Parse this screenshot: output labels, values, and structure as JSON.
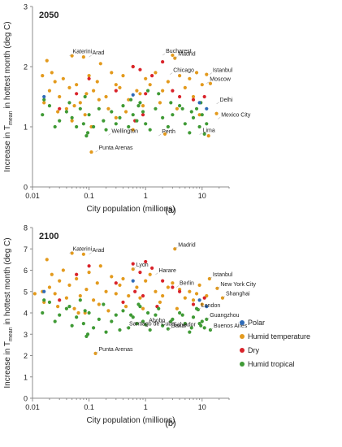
{
  "chart_data": [
    {
      "type": "scatter",
      "title": "2050",
      "caption": "(a)",
      "xlabel": "City population (millions)",
      "ylabel_main": "Increase in T",
      "ylabel_sub": "mean",
      "ylabel_tail": " in hottest month (deg C)",
      "xscale": "log",
      "xlim": [
        0.01,
        30
      ],
      "ylim": [
        0,
        3
      ],
      "xticks": [
        0.01,
        0.1,
        1,
        10
      ],
      "xtick_labels": [
        "0.01",
        "0.1",
        "1",
        "10"
      ],
      "yticks": [
        0,
        1,
        2,
        3
      ],
      "ytick_labels": [
        "0",
        "1",
        "2",
        "3"
      ],
      "grid": false,
      "annotations": [
        {
          "text": "Katerini",
          "x": 0.045,
          "y": 2.18
        },
        {
          "text": "Arad",
          "x": 0.1,
          "y": 2.16
        },
        {
          "text": "Bucharest",
          "x": 2.0,
          "y": 2.19
        },
        {
          "text": "Madrid",
          "x": 3.3,
          "y": 2.14
        },
        {
          "text": "Chicago",
          "x": 2.7,
          "y": 1.87
        },
        {
          "text": "Istanbul",
          "x": 13.5,
          "y": 1.87
        },
        {
          "text": "Moscow",
          "x": 12.0,
          "y": 1.72
        },
        {
          "text": "Delhi",
          "x": 18.0,
          "y": 1.38
        },
        {
          "text": "Mexico City",
          "x": 19.0,
          "y": 1.13
        },
        {
          "text": "Wellington",
          "x": 0.22,
          "y": 0.86
        },
        {
          "text": "Perth",
          "x": 1.7,
          "y": 0.85
        },
        {
          "text": "Lima",
          "x": 9.0,
          "y": 0.87
        },
        {
          "text": "Punta Arenas",
          "x": 0.13,
          "y": 0.58
        }
      ],
      "series": [
        {
          "name": "Humid temperature",
          "x": [
            0.015,
            0.018,
            0.02,
            0.022,
            0.025,
            0.03,
            0.035,
            0.04,
            0.045,
            0.05,
            0.06,
            0.07,
            0.08,
            0.09,
            0.1,
            0.12,
            0.14,
            0.16,
            0.2,
            0.25,
            0.3,
            0.35,
            0.4,
            0.5,
            0.6,
            0.7,
            0.8,
            1.0,
            1.2,
            1.5,
            2.0,
            2.5,
            3.0,
            3.3,
            4.0,
            5.0,
            6.0,
            7.0,
            8.0,
            10.0,
            12.0,
            14.0,
            0.016,
            0.028,
            0.055,
            0.085,
            0.15,
            0.22,
            0.45,
            0.9,
            1.8,
            3.6,
            9.0,
            0.11,
            0.6,
            13.0,
            18.0,
            0.05,
            0.3,
            2.2,
            0.11
          ],
          "y": [
            1.85,
            2.1,
            1.6,
            1.9,
            1.75,
            1.5,
            1.8,
            1.3,
            1.65,
            2.18,
            1.7,
            1.4,
            2.16,
            1.55,
            1.85,
            1.6,
            1.75,
            2.05,
            1.5,
            1.9,
            1.7,
            1.65,
            1.85,
            1.45,
            2.0,
            1.6,
            1.55,
            1.8,
            1.7,
            1.9,
            1.6,
            1.75,
            2.19,
            2.14,
            1.85,
            1.65,
            1.8,
            1.5,
            1.9,
            1.7,
            1.87,
            1.72,
            1.4,
            1.25,
            1.35,
            1.2,
            1.45,
            1.3,
            1.25,
            1.35,
            1.4,
            1.3,
            1.2,
            0.58,
            0.95,
            0.85,
            1.22,
            1.1,
            1.15,
            0.88,
            1.0
          ]
        },
        {
          "name": "Dry",
          "x": [
            0.03,
            0.06,
            0.1,
            0.3,
            0.6,
            0.8,
            1.0,
            1.3,
            2.0,
            3.0,
            4.0,
            7.0,
            11.0,
            0.9,
            0.65
          ],
          "y": [
            1.3,
            1.55,
            1.8,
            1.6,
            2.0,
            1.95,
            1.55,
            1.85,
            2.08,
            1.6,
            1.5,
            1.45,
            1.5,
            1.2,
            1.1
          ]
        },
        {
          "name": "Humid tropical",
          "x": [
            0.015,
            0.02,
            0.025,
            0.03,
            0.04,
            0.05,
            0.06,
            0.07,
            0.08,
            0.09,
            0.1,
            0.12,
            0.15,
            0.18,
            0.2,
            0.25,
            0.3,
            0.35,
            0.4,
            0.5,
            0.6,
            0.7,
            0.8,
            0.9,
            1.0,
            1.2,
            1.5,
            2.0,
            2.5,
            3.0,
            4.0,
            5.0,
            6.0,
            7.0,
            8.0,
            9.0,
            10.0,
            11.0,
            12.0,
            0.016,
            0.045,
            0.085,
            0.55,
            0.75,
            1.1,
            1.7,
            2.8,
            4.5,
            6.5,
            9.5,
            0.095
          ],
          "y": [
            1.2,
            1.35,
            1.0,
            1.1,
            1.25,
            1.15,
            1.0,
            1.3,
            1.05,
            0.85,
            1.2,
            1.0,
            1.3,
            1.1,
            0.95,
            1.25,
            1.05,
            1.15,
            1.35,
            1.0,
            1.2,
            1.1,
            1.4,
            1.25,
            1.05,
            0.95,
            1.3,
            1.15,
            1.0,
            1.2,
            1.35,
            1.05,
            0.9,
            1.15,
            1.3,
            1.0,
            1.2,
            0.88,
            1.05,
            1.45,
            1.4,
            1.5,
            1.45,
            1.35,
            1.6,
            1.55,
            1.4,
            1.3,
            1.25,
            1.4,
            0.9
          ]
        },
        {
          "name": "Polar",
          "x": [
            0.016,
            0.6,
            9.0,
            12.0
          ],
          "y": [
            1.5,
            1.53,
            1.4,
            1.3
          ]
        }
      ]
    },
    {
      "type": "scatter",
      "title": "2100",
      "caption": "(b)",
      "xlabel": "City population (millions)",
      "ylabel_main": "Increase in T",
      "ylabel_sub": "mean",
      "ylabel_tail": " in hottest month (deg C)",
      "xscale": "log",
      "xlim": [
        0.01,
        30
      ],
      "ylim": [
        0,
        8
      ],
      "xticks": [
        0.01,
        0.1,
        1,
        10
      ],
      "xtick_labels": [
        "0.01",
        "0.1",
        "1",
        "10"
      ],
      "yticks": [
        0,
        1,
        2,
        3,
        4,
        5,
        6,
        7,
        8
      ],
      "ytick_labels": [
        "0",
        "1",
        "2",
        "3",
        "4",
        "5",
        "6",
        "7",
        "8"
      ],
      "grid": false,
      "legend": {
        "position": "right",
        "entries": [
          "Polar",
          "Humid temperature",
          "Dry",
          "Humid tropical"
        ]
      },
      "annotations": [
        {
          "text": "Katerini",
          "x": 0.045,
          "y": 6.8
        },
        {
          "text": "Arad",
          "x": 0.1,
          "y": 6.75
        },
        {
          "text": "Madrid",
          "x": 3.3,
          "y": 7.0
        },
        {
          "text": "Lyon",
          "x": 0.6,
          "y": 6.05
        },
        {
          "text": "Harare",
          "x": 1.5,
          "y": 5.8
        },
        {
          "text": "Istanbul",
          "x": 13.5,
          "y": 5.6
        },
        {
          "text": "Berlin",
          "x": 3.5,
          "y": 5.2
        },
        {
          "text": "New York City",
          "x": 18.5,
          "y": 5.15
        },
        {
          "text": "Shanghai",
          "x": 23.0,
          "y": 4.7
        },
        {
          "text": "London",
          "x": 8.5,
          "y": 4.15
        },
        {
          "text": "Guangzhou",
          "x": 12.0,
          "y": 3.7
        },
        {
          "text": "Buenos Aires",
          "x": 14.0,
          "y": 3.2
        },
        {
          "text": "Salvador",
          "x": 2.7,
          "y": 3.25
        },
        {
          "text": "Abobo",
          "x": 1.0,
          "y": 3.45
        },
        {
          "text": "Santiago de Cuba",
          "x": 0.45,
          "y": 3.3
        },
        {
          "text": "Dakar",
          "x": 2.5,
          "y": 3.2
        },
        {
          "text": "Punta Arenas",
          "x": 0.13,
          "y": 2.1
        }
      ],
      "series": [
        {
          "name": "Humid temperature",
          "x": [
            0.015,
            0.018,
            0.02,
            0.022,
            0.025,
            0.03,
            0.035,
            0.04,
            0.045,
            0.05,
            0.06,
            0.07,
            0.08,
            0.09,
            0.1,
            0.12,
            0.14,
            0.16,
            0.2,
            0.25,
            0.3,
            0.35,
            0.4,
            0.5,
            0.6,
            0.7,
            0.8,
            1.0,
            1.2,
            1.5,
            2.0,
            2.5,
            3.0,
            3.3,
            4.0,
            5.0,
            6.0,
            7.0,
            8.0,
            9.0,
            10.0,
            12.0,
            13.5,
            18.5,
            23.0,
            0.016,
            0.028,
            0.055,
            0.085,
            0.15,
            0.22,
            0.45,
            0.9,
            1.8,
            3.6,
            0.13,
            0.011,
            0.065
          ],
          "y": [
            5.0,
            6.5,
            5.2,
            5.8,
            4.9,
            5.5,
            6.0,
            4.7,
            5.3,
            6.8,
            5.6,
            4.8,
            6.75,
            5.1,
            5.9,
            4.6,
            5.4,
            6.2,
            5.0,
            5.7,
            4.9,
            5.3,
            5.6,
            4.8,
            6.05,
            5.2,
            4.7,
            5.5,
            5.8,
            5.0,
            4.8,
            5.2,
            5.4,
            7.0,
            5.1,
            4.7,
            5.0,
            4.6,
            4.9,
            5.3,
            4.4,
            4.8,
            5.6,
            5.15,
            4.7,
            4.5,
            4.3,
            4.2,
            4.0,
            4.4,
            4.1,
            4.3,
            4.2,
            4.5,
            4.2,
            2.1,
            4.9,
            4.0
          ]
        },
        {
          "name": "Dry",
          "x": [
            0.03,
            0.06,
            0.1,
            0.3,
            0.6,
            0.8,
            1.0,
            1.3,
            2.0,
            3.0,
            4.0,
            7.0,
            11.0,
            0.9,
            0.65,
            0.4,
            1.6
          ],
          "y": [
            4.6,
            5.8,
            6.2,
            5.4,
            6.3,
            5.9,
            6.4,
            6.1,
            5.5,
            5.2,
            5.0,
            4.4,
            4.7,
            4.8,
            5.0,
            4.5,
            4.3
          ]
        },
        {
          "name": "Humid tropical",
          "x": [
            0.015,
            0.02,
            0.025,
            0.03,
            0.04,
            0.05,
            0.06,
            0.07,
            0.08,
            0.09,
            0.1,
            0.12,
            0.15,
            0.18,
            0.2,
            0.25,
            0.3,
            0.35,
            0.4,
            0.5,
            0.6,
            0.7,
            0.8,
            0.9,
            1.0,
            1.2,
            1.5,
            2.0,
            2.5,
            3.0,
            4.0,
            5.0,
            6.0,
            7.0,
            8.0,
            8.5,
            9.0,
            10.0,
            11.0,
            12.0,
            14.0,
            0.016,
            0.045,
            0.085,
            0.55,
            0.75,
            1.1,
            1.7,
            2.8,
            4.5,
            6.5,
            9.5,
            0.095
          ],
          "y": [
            4.0,
            4.5,
            3.6,
            3.9,
            4.2,
            3.4,
            3.8,
            4.6,
            3.5,
            2.9,
            4.0,
            3.3,
            3.7,
            4.4,
            3.1,
            3.6,
            3.9,
            3.2,
            4.1,
            3.3,
            3.8,
            3.5,
            4.3,
            3.6,
            3.45,
            3.2,
            3.9,
            3.4,
            3.25,
            3.7,
            4.0,
            3.5,
            3.1,
            3.8,
            4.2,
            4.15,
            3.5,
            3.6,
            3.3,
            3.7,
            3.2,
            4.6,
            4.3,
            4.1,
            3.9,
            4.4,
            4.0,
            4.2,
            3.6,
            3.9,
            3.3,
            3.4,
            3.0
          ]
        },
        {
          "name": "Polar",
          "x": [
            0.016,
            0.6,
            9.0,
            12.0
          ],
          "y": [
            5.0,
            5.5,
            4.6,
            4.3
          ]
        }
      ]
    }
  ],
  "colors": {
    "Polar": "#2e6bb8",
    "Humid temperature": "#e39a1d",
    "Dry": "#d9232a",
    "Humid tropical": "#3f9a35",
    "axis": "#8c8c8c",
    "leader": "#999999"
  }
}
